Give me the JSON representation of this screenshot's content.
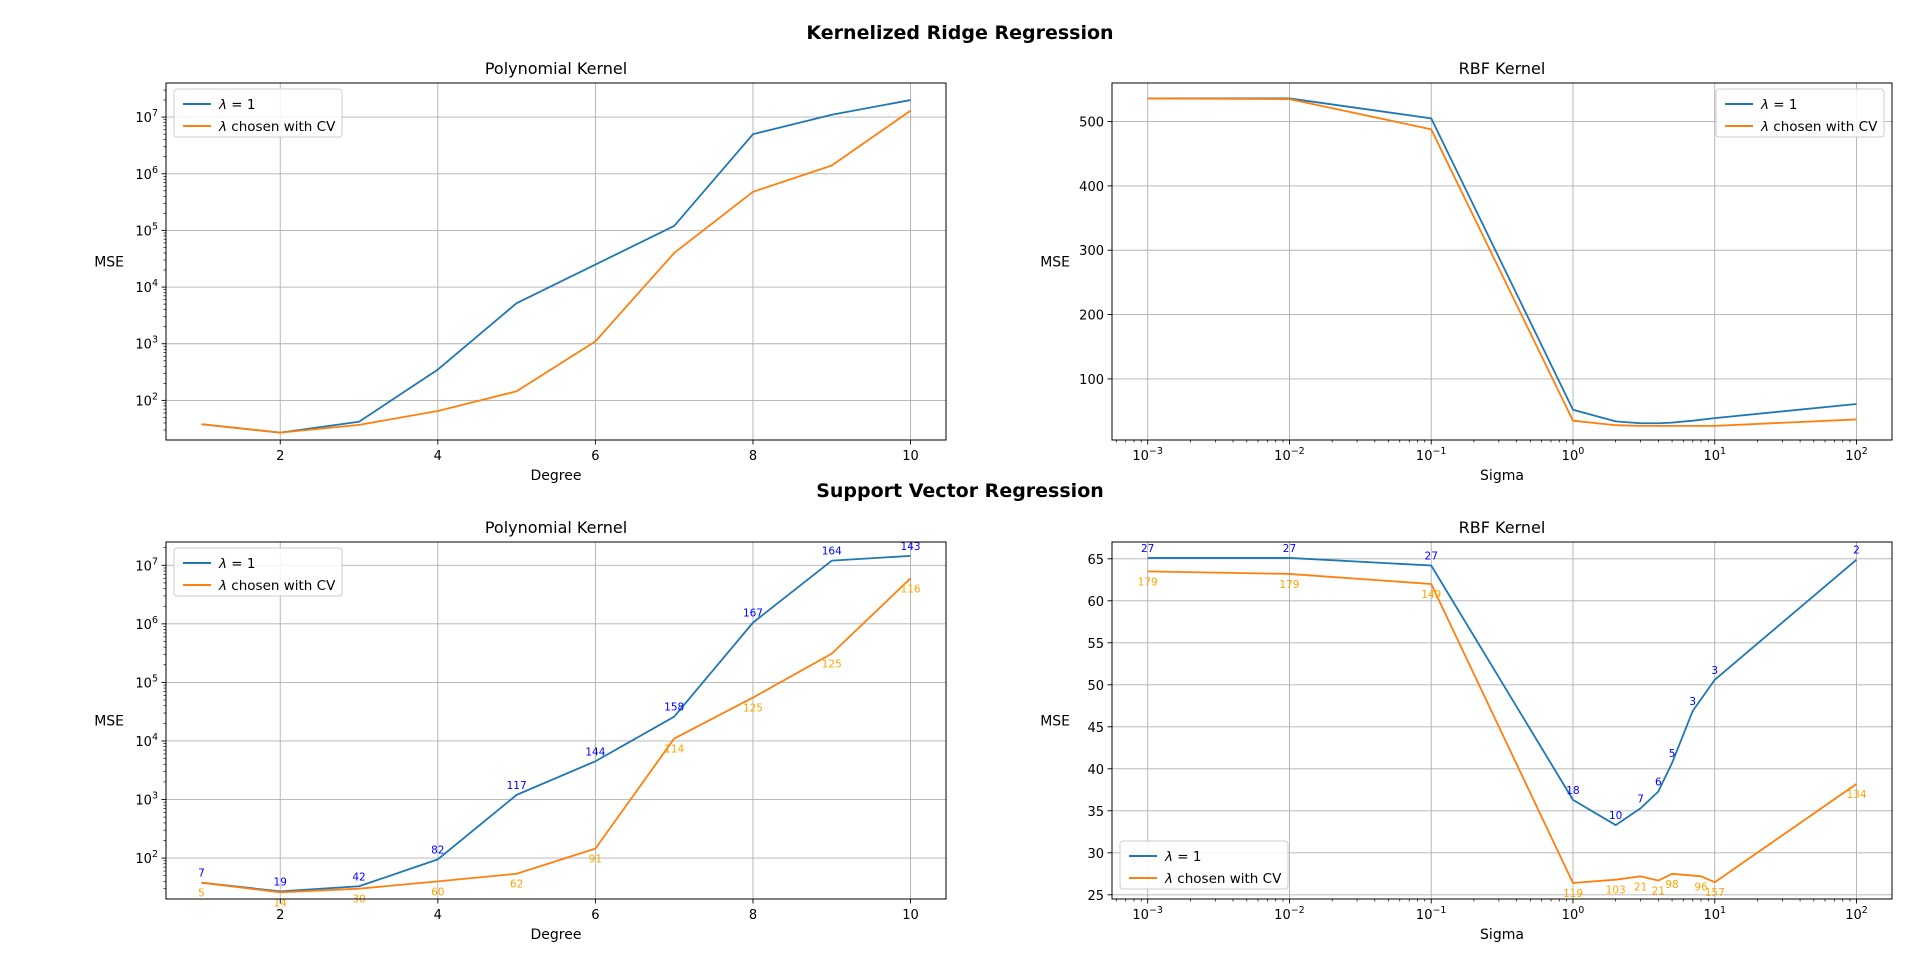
{
  "figure": {
    "sections": [
      "Kernelized Ridge Regression",
      "Support Vector Regression"
    ]
  },
  "chart_data": [
    {
      "type": "line",
      "section": "Kernelized Ridge Regression",
      "title": "Polynomial Kernel",
      "xlabel": "Degree",
      "ylabel": "MSE",
      "xscale": "linear",
      "yscale": "log",
      "xlim": [
        0.55,
        10.45
      ],
      "ylim": [
        20,
        40000000
      ],
      "xticks": [
        2,
        4,
        6,
        8,
        10
      ],
      "xtick_labels": [
        "2",
        "4",
        "6",
        "8",
        "10"
      ],
      "yticks": [
        100,
        1000,
        10000,
        100000,
        1000000,
        10000000
      ],
      "ytick_labels": [
        "10^2",
        "10^3",
        "10^4",
        "10^5",
        "10^6",
        "10^7"
      ],
      "grid": true,
      "legend": "top-left",
      "x": [
        1,
        2,
        3,
        4,
        5,
        6,
        7,
        8,
        9,
        10
      ],
      "series": [
        {
          "name": "λ = 1",
          "color": "#1f77b4",
          "values": [
            38,
            27,
            42,
            350,
            5200,
            25000,
            120000,
            5000000,
            11000000,
            20000000
          ]
        },
        {
          "name": "λ chosen with CV",
          "color": "#ff7f0e",
          "values": [
            38,
            27,
            37,
            65,
            145,
            1100,
            40000,
            480000,
            1400000,
            13000000
          ]
        }
      ]
    },
    {
      "type": "line",
      "section": "Kernelized Ridge Regression",
      "title": "RBF Kernel",
      "xlabel": "Sigma",
      "ylabel": "MSE",
      "xscale": "log",
      "yscale": "linear",
      "xlim": [
        0.00056,
        178
      ],
      "ylim": [
        5,
        560
      ],
      "xticks": [
        0.001,
        0.01,
        0.1,
        1,
        10,
        100
      ],
      "xtick_labels": [
        "10^-3",
        "10^-2",
        "10^-1",
        "10^0",
        "10^1",
        "10^2"
      ],
      "yticks": [
        100,
        200,
        300,
        400,
        500
      ],
      "ytick_labels": [
        "100",
        "200",
        "300",
        "400",
        "500"
      ],
      "grid": true,
      "legend": "top-right",
      "x": [
        0.001,
        0.01,
        0.1,
        1,
        2,
        3,
        4,
        5,
        7,
        10,
        100
      ],
      "series": [
        {
          "name": "λ = 1",
          "color": "#1f77b4",
          "values": [
            536,
            536,
            505,
            52,
            34,
            31,
            31,
            32,
            35,
            39,
            61
          ]
        },
        {
          "name": "λ chosen with CV",
          "color": "#ff7f0e",
          "values": [
            536,
            535,
            488,
            35,
            28,
            27,
            27,
            27,
            27,
            27,
            37
          ]
        }
      ]
    },
    {
      "type": "line",
      "section": "Support Vector Regression",
      "title": "Polynomial Kernel",
      "xlabel": "Degree",
      "ylabel": "MSE",
      "xscale": "linear",
      "yscale": "log",
      "xlim": [
        0.55,
        10.45
      ],
      "ylim": [
        20,
        25000000
      ],
      "xticks": [
        2,
        4,
        6,
        8,
        10
      ],
      "xtick_labels": [
        "2",
        "4",
        "6",
        "8",
        "10"
      ],
      "yticks": [
        100,
        1000,
        10000,
        100000,
        1000000,
        10000000
      ],
      "ytick_labels": [
        "10^2",
        "10^3",
        "10^4",
        "10^5",
        "10^6",
        "10^7"
      ],
      "grid": true,
      "legend": "top-left",
      "x": [
        1,
        2,
        3,
        4,
        5,
        6,
        7,
        8,
        9,
        10
      ],
      "series": [
        {
          "name": "λ = 1",
          "color": "#1f77b4",
          "label_color": "#0000ff",
          "label_side": "above",
          "values": [
            38,
            27,
            33,
            95,
            1200,
            4500,
            26000,
            1050000,
            12000000,
            14500000
          ],
          "labels": [
            "7",
            "19",
            "42",
            "82",
            "117",
            "144",
            "158",
            "167",
            "164",
            "143"
          ]
        },
        {
          "name": "λ chosen with CV",
          "color": "#ff7f0e",
          "label_color": "#ffa500",
          "label_side": "below",
          "values": [
            38,
            26,
            30,
            40,
            54,
            145,
            11000,
            55000,
            310000,
            6000000
          ],
          "labels": [
            "5",
            "14",
            "30",
            "60",
            "62",
            "91",
            "114",
            "125",
            "125",
            "116"
          ]
        }
      ]
    },
    {
      "type": "line",
      "section": "Support Vector Regression",
      "title": "RBF Kernel",
      "xlabel": "Sigma",
      "ylabel": "MSE",
      "xscale": "log",
      "yscale": "linear",
      "xlim": [
        0.00056,
        178
      ],
      "ylim": [
        24.5,
        67
      ],
      "xticks": [
        0.001,
        0.01,
        0.1,
        1,
        10,
        100
      ],
      "xtick_labels": [
        "10^-3",
        "10^-2",
        "10^-1",
        "10^0",
        "10^1",
        "10^2"
      ],
      "yticks": [
        25,
        30,
        35,
        40,
        45,
        50,
        55,
        60,
        65
      ],
      "ytick_labels": [
        "25",
        "30",
        "35",
        "40",
        "45",
        "50",
        "55",
        "60",
        "65"
      ],
      "grid": true,
      "legend": "bottom-left",
      "series": [
        {
          "name": "λ = 1",
          "color": "#1f77b4",
          "label_color": "#0000ff",
          "label_side": "above",
          "x": [
            0.001,
            0.01,
            0.1,
            1,
            2,
            3,
            4,
            5,
            7,
            10,
            100
          ],
          "values": [
            65.1,
            65.1,
            64.2,
            36.3,
            33.3,
            35.3,
            37.3,
            40.7,
            46.9,
            50.6,
            64.9
          ],
          "labels": [
            "27",
            "27",
            "27",
            "18",
            "10",
            "7",
            "6",
            "5",
            "3",
            "3",
            "2"
          ]
        },
        {
          "name": "λ chosen with CV",
          "color": "#ff7f0e",
          "label_color": "#ffa500",
          "label_side": "below",
          "x": [
            0.001,
            0.01,
            0.1,
            1,
            2,
            3,
            4,
            5,
            8,
            10,
            100
          ],
          "values": [
            63.5,
            63.2,
            62.0,
            26.4,
            26.8,
            27.2,
            26.7,
            27.5,
            27.2,
            26.5,
            38.2
          ],
          "labels": [
            "179",
            "179",
            "149",
            "119",
            "103",
            "21",
            "21",
            "98",
            "96",
            "157",
            "134"
          ]
        }
      ]
    }
  ]
}
